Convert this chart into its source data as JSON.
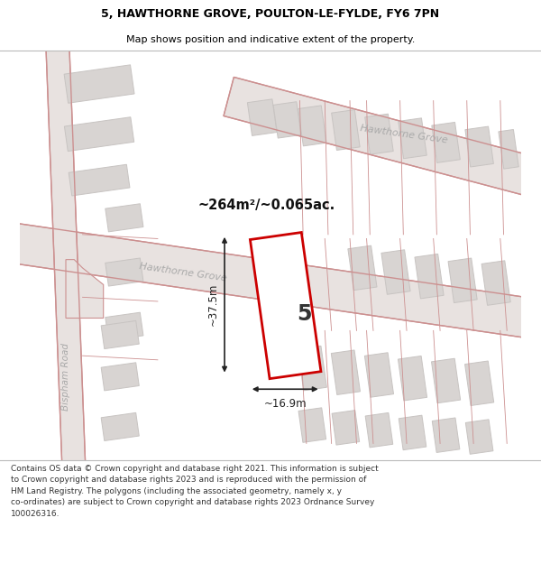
{
  "title": "5, HAWTHORNE GROVE, POULTON-LE-FYLDE, FY6 7PN",
  "subtitle": "Map shows position and indicative extent of the property.",
  "footer": "Contains OS data © Crown copyright and database right 2021. This information is subject\nto Crown copyright and database rights 2023 and is reproduced with the permission of\nHM Land Registry. The polygons (including the associated geometry, namely x, y\nco-ordinates) are subject to Crown copyright and database rights 2023 Ordnance Survey\n100026316.",
  "area_label": "~264m²/~0.065ac.",
  "width_label": "~16.9m",
  "height_label": "~37.5m",
  "plot_number": "5",
  "map_bg": "#f2eeec",
  "bldg_fill": "#d8d4d2",
  "bldg_edge": "#c8c4c2",
  "road_line": "#cc9090",
  "road_fill": "#e8e2e0",
  "plot_color": "#cc0000",
  "label_color": "#aaaaaa",
  "annot_color": "#222222",
  "title_fontsize": 9,
  "subtitle_fontsize": 8,
  "footer_fontsize": 6.5
}
